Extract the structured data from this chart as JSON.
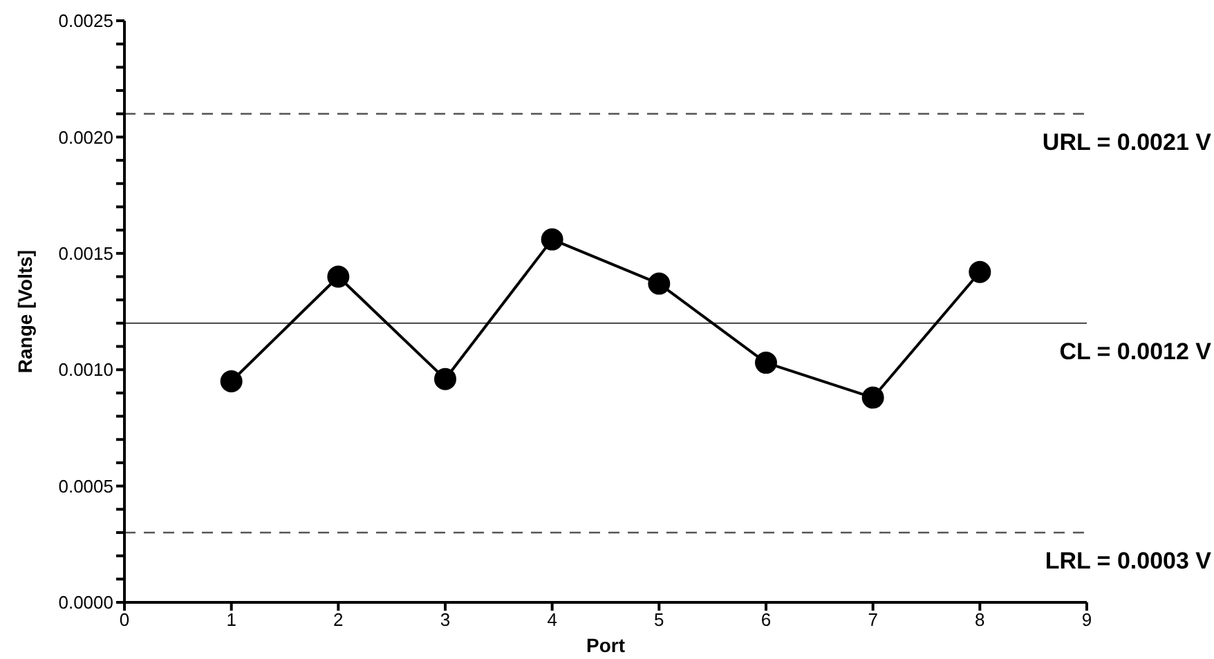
{
  "chart_data": {
    "type": "line",
    "xlabel": "Port",
    "ylabel": "Range [Volts]",
    "x": [
      1,
      2,
      3,
      4,
      5,
      6,
      7,
      8
    ],
    "series": [
      {
        "color": "#000000",
        "values": [
          0.00095,
          0.0014,
          0.00096,
          0.00156,
          0.00137,
          0.00103,
          0.00088,
          0.00142
        ]
      }
    ],
    "xlim": [
      0,
      9
    ],
    "xticks": [
      0,
      1,
      2,
      3,
      4,
      5,
      6,
      7,
      8,
      9
    ],
    "ylim": [
      0,
      0.0025
    ],
    "yticks": [
      {
        "value": 0,
        "label": "0.0000"
      },
      {
        "value": 0.0001,
        "label": null
      },
      {
        "value": 0.0002,
        "label": null
      },
      {
        "value": 0.0003,
        "label": null
      },
      {
        "value": 0.0004,
        "label": null
      },
      {
        "value": 0.0005,
        "label": "0.0005"
      },
      {
        "value": 0.0006,
        "label": null
      },
      {
        "value": 0.0007,
        "label": null
      },
      {
        "value": 0.0008,
        "label": null
      },
      {
        "value": 0.0009,
        "label": null
      },
      {
        "value": 0.001,
        "label": "0.0010"
      },
      {
        "value": 0.0011,
        "label": null
      },
      {
        "value": 0.0012,
        "label": null
      },
      {
        "value": 0.0013,
        "label": null
      },
      {
        "value": 0.0014,
        "label": null
      },
      {
        "value": 0.0015,
        "label": "0.0015"
      },
      {
        "value": 0.0016,
        "label": null
      },
      {
        "value": 0.0017,
        "label": null
      },
      {
        "value": 0.0018,
        "label": null
      },
      {
        "value": 0.0019,
        "label": null
      },
      {
        "value": 0.002,
        "label": "0.0020"
      },
      {
        "value": 0.0021,
        "label": null
      },
      {
        "value": 0.0022,
        "label": null
      },
      {
        "value": 0.0023,
        "label": null
      },
      {
        "value": 0.0024,
        "label": null
      },
      {
        "value": 0.0025,
        "label": "0.0025"
      }
    ],
    "ref_lines": [
      {
        "axis": "y",
        "value": 0.0021,
        "label": "URL = 0.0021 V",
        "color": "#555555",
        "line_style": "dashed"
      },
      {
        "axis": "y",
        "value": 0.0012,
        "label": "CL = 0.0012 V",
        "color": "#555555",
        "line_style": "solid"
      },
      {
        "axis": "y",
        "value": 0.0003,
        "label": "LRL = 0.0003 V",
        "color": "#555555",
        "line_style": "dashed"
      }
    ],
    "marker": "circle",
    "line_style": "solid"
  }
}
